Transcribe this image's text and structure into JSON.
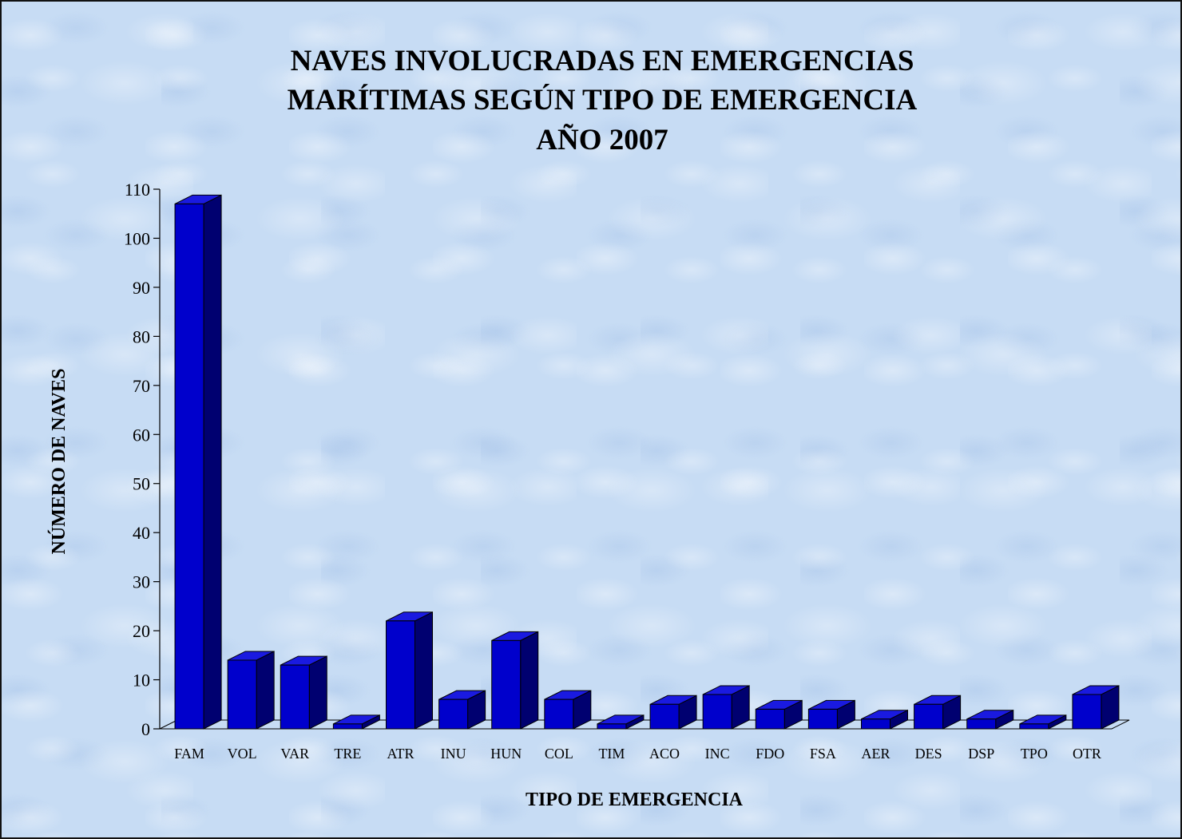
{
  "chart_data": {
    "type": "bar",
    "title": [
      "NAVES INVOLUCRADAS EN EMERGENCIAS",
      "MARÍTIMAS SEGÚN TIPO DE EMERGENCIA",
      "AÑO 2007"
    ],
    "xlabel": "TIPO DE EMERGENCIA",
    "ylabel": "NÚMERO DE NAVES",
    "ylim": [
      0,
      110
    ],
    "yticks": [
      0,
      10,
      20,
      30,
      40,
      50,
      60,
      70,
      80,
      90,
      100,
      110
    ],
    "categories": [
      "FAM",
      "VOL",
      "VAR",
      "TRE",
      "ATR",
      "INU",
      "HUN",
      "COL",
      "TIM",
      "ACO",
      "INC",
      "FDO",
      "FSA",
      "AER",
      "DES",
      "DSP",
      "TPO",
      "OTR"
    ],
    "values": [
      107,
      14,
      13,
      1,
      22,
      6,
      18,
      6,
      1,
      5,
      7,
      4,
      4,
      2,
      5,
      2,
      1,
      7
    ],
    "grid": false,
    "legend": "none",
    "style": "3d",
    "colors": {
      "bar_front": "#0000cc",
      "bar_side": "#000070",
      "bar_top": "#1a1ae0",
      "background": "#c7dcf4"
    }
  }
}
